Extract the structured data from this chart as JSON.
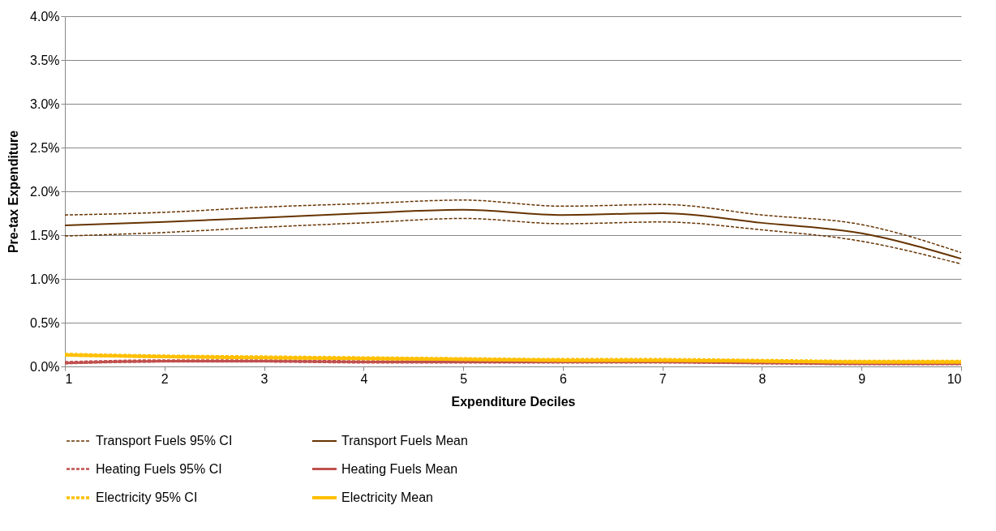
{
  "chart_data": {
    "type": "line",
    "xlabel": "Expenditure Deciles",
    "ylabel": "Pre-tax Expenditure",
    "x": [
      1,
      2,
      3,
      4,
      5,
      6,
      7,
      8,
      9,
      10
    ],
    "xlim": [
      1,
      10
    ],
    "xticks": [
      1,
      2,
      3,
      4,
      5,
      6,
      7,
      8,
      9,
      10
    ],
    "ylim": [
      0,
      4
    ],
    "yticks": [
      {
        "value": 0,
        "label": "0.0%"
      },
      {
        "value": 0.5,
        "label": "0.5%"
      },
      {
        "value": 1,
        "label": "1.0%"
      },
      {
        "value": 1.5,
        "label": "1.5%"
      },
      {
        "value": 2,
        "label": "2.0%"
      },
      {
        "value": 2.5,
        "label": "2.5%"
      },
      {
        "value": 3,
        "label": "3.0%"
      },
      {
        "value": 3.5,
        "label": "3.5%"
      },
      {
        "value": 4,
        "label": "4.0%"
      }
    ],
    "grid": "y",
    "legend": "bottom",
    "series": [
      {
        "name": "Transport Fuels 95% CI",
        "color": "#663300",
        "line_style": "dashed",
        "values": [
          1.73,
          1.76,
          1.82,
          1.86,
          1.9,
          1.83,
          1.85,
          1.73,
          1.62,
          1.3
        ]
      },
      {
        "name": "Transport Fuels Mean",
        "color": "#663300",
        "line_style": "solid",
        "values": [
          1.61,
          1.65,
          1.7,
          1.75,
          1.79,
          1.73,
          1.75,
          1.64,
          1.52,
          1.23
        ]
      },
      {
        "name": "Heating Fuels 95% CI",
        "color": "#c0504d",
        "line_style": "dashed",
        "values": [
          0.05,
          0.07,
          0.07,
          0.06,
          0.06,
          0.06,
          0.06,
          0.05,
          0.04,
          0.04
        ]
      },
      {
        "name": "Heating Fuels Mean",
        "color": "#c0504d",
        "line_style": "solid",
        "values": [
          0.04,
          0.06,
          0.06,
          0.05,
          0.05,
          0.05,
          0.05,
          0.04,
          0.03,
          0.03
        ]
      },
      {
        "name": "Electricity  95% CI",
        "color": "#ffc000",
        "line_style": "dashed",
        "values": [
          0.14,
          0.12,
          0.11,
          0.1,
          0.09,
          0.08,
          0.08,
          0.07,
          0.06,
          0.06
        ]
      },
      {
        "name": "Electricity  Mean",
        "color": "#ffc000",
        "line_style": "solid",
        "values": [
          0.13,
          0.11,
          0.1,
          0.09,
          0.08,
          0.07,
          0.07,
          0.06,
          0.05,
          0.05
        ]
      },
      {
        "color": "#663300",
        "line_style": "dashed",
        "values": [
          1.49,
          1.53,
          1.59,
          1.64,
          1.69,
          1.63,
          1.65,
          1.56,
          1.43,
          1.17
        ]
      },
      {
        "color": "#c0504d",
        "line_style": "dashed",
        "values": [
          0.03,
          0.05,
          0.05,
          0.04,
          0.04,
          0.04,
          0.04,
          0.03,
          0.02,
          0.02
        ]
      },
      {
        "color": "#ffc000",
        "line_style": "dashed",
        "values": [
          0.12,
          0.1,
          0.09,
          0.08,
          0.07,
          0.06,
          0.06,
          0.05,
          0.04,
          0.04
        ]
      }
    ]
  }
}
